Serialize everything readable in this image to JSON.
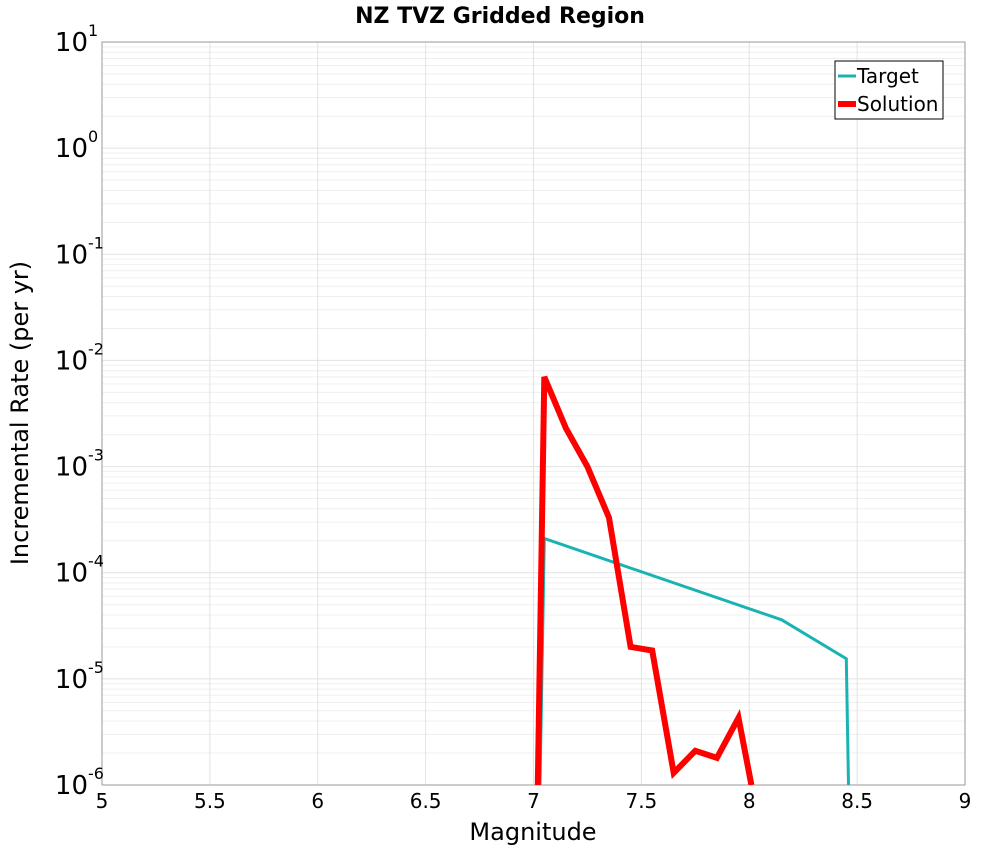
{
  "chart_data": {
    "type": "line",
    "title": "NZ TVZ Gridded Region",
    "xlabel": "Magnitude",
    "ylabel": "Incremental Rate (per yr)",
    "xlim": [
      5,
      9
    ],
    "ylim": [
      1e-06,
      10
    ],
    "yscale": "log",
    "grid": true,
    "legend_position": "top-right",
    "xticks": [
      "5",
      "5.5",
      "6",
      "6.5",
      "7",
      "7.5",
      "8",
      "8.5",
      "9"
    ],
    "yticks": [
      {
        "base": "10",
        "exp": "1"
      },
      {
        "base": "10",
        "exp": "0"
      },
      {
        "base": "10",
        "exp": "-1"
      },
      {
        "base": "10",
        "exp": "-2"
      },
      {
        "base": "10",
        "exp": "-3"
      },
      {
        "base": "10",
        "exp": "-4"
      },
      {
        "base": "10",
        "exp": "-5"
      },
      {
        "base": "10",
        "exp": "-6"
      }
    ],
    "series": [
      {
        "name": "Target",
        "color": "#1ab3b3",
        "points": [
          [
            7.03,
            1e-06
          ],
          [
            7.05,
            0.00021
          ],
          [
            8.15,
            3.6e-05
          ],
          [
            8.45,
            1.55e-05
          ],
          [
            8.46,
            1e-06
          ]
        ]
      },
      {
        "name": "Solution",
        "color": "#ff0000",
        "points": [
          [
            7.02,
            1e-06
          ],
          [
            7.05,
            0.007
          ],
          [
            7.15,
            0.0023
          ],
          [
            7.25,
            0.001
          ],
          [
            7.35,
            0.00033
          ],
          [
            7.45,
            2e-05
          ],
          [
            7.55,
            1.85e-05
          ],
          [
            7.65,
            1.3e-06
          ],
          [
            7.75,
            2.1e-06
          ],
          [
            7.85,
            1.8e-06
          ],
          [
            7.95,
            4.3e-06
          ],
          [
            8.01,
            1e-06
          ]
        ]
      }
    ]
  }
}
